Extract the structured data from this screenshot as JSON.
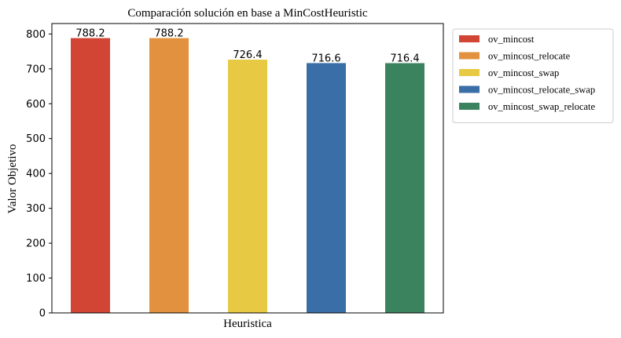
{
  "chart_data": {
    "type": "bar",
    "title": "Comparación solución en base a MinCostHeuristic",
    "xlabel": "Heuristica",
    "ylabel": "Valor Objetivo",
    "ylim": [
      0,
      830
    ],
    "yticks": [
      0,
      100,
      200,
      300,
      400,
      500,
      600,
      700,
      800
    ],
    "grid": false,
    "legend_position": "outside-top-right",
    "series": [
      {
        "name": "ov_mincost",
        "value": 788.2,
        "label": "788.2",
        "color": "#d24434"
      },
      {
        "name": "ov_mincost_relocate",
        "value": 788.2,
        "label": "788.2",
        "color": "#e2923f"
      },
      {
        "name": "ov_mincost_swap",
        "value": 726.4,
        "label": "726.4",
        "color": "#e8c943"
      },
      {
        "name": "ov_mincost_relocate_swap",
        "value": 716.6,
        "label": "716.6",
        "color": "#3a6ea6"
      },
      {
        "name": "ov_mincost_swap_relocate",
        "value": 716.4,
        "label": "716.4",
        "color": "#3b835e"
      }
    ]
  }
}
